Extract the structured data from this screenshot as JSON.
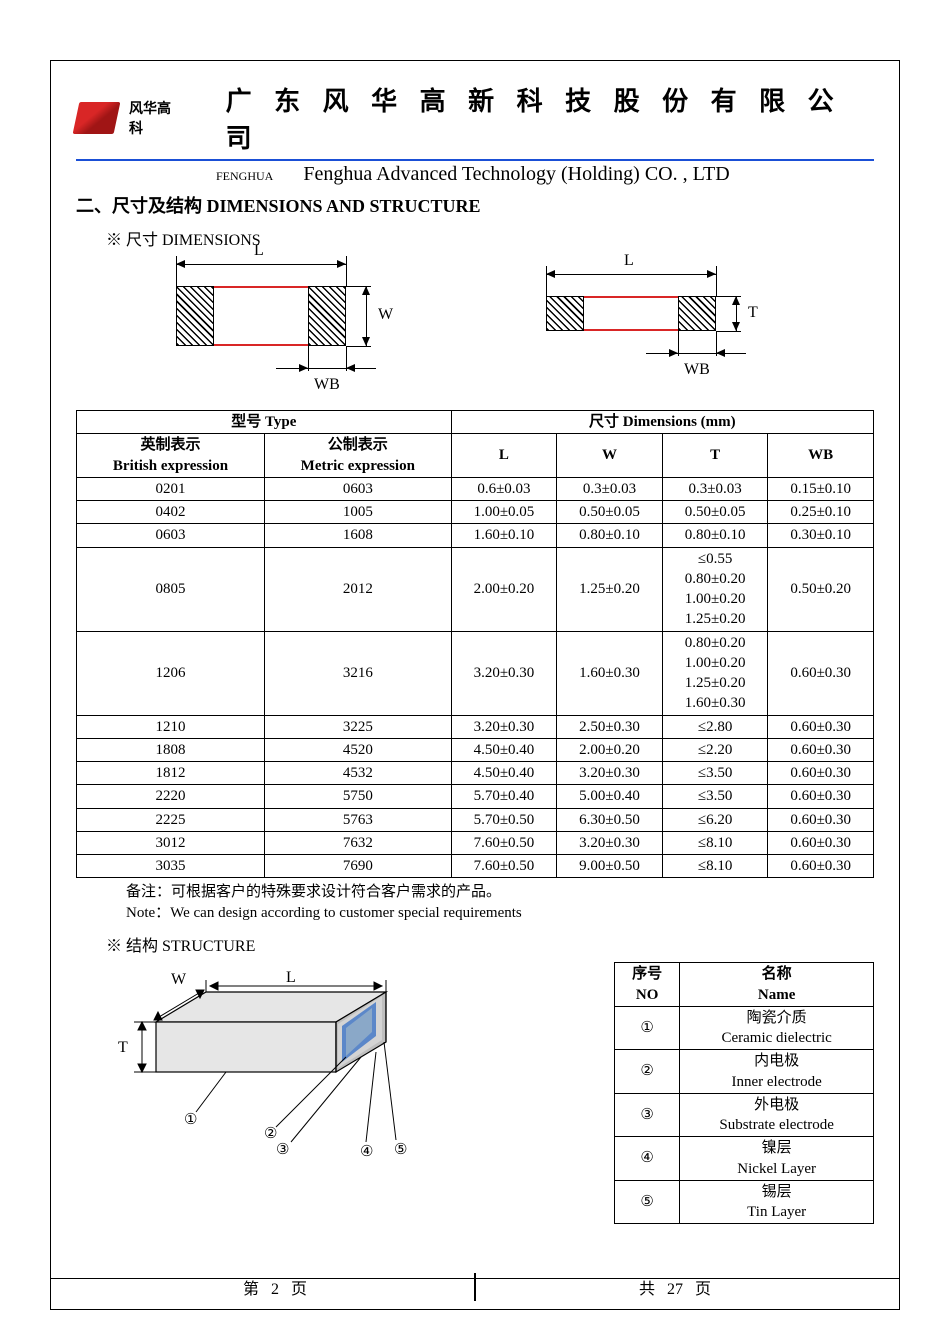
{
  "header": {
    "brand_cn": "风华高科",
    "company_cn": "广 东 风 华 高 新 科 技 股 份 有 限 公 司",
    "fenghua_en": "FENGHUA",
    "company_en": "Fenghua Advanced Technology (Holding) CO. , LTD",
    "rule_color": "#1a4fd6",
    "logo_color": "#d92626"
  },
  "section": {
    "title": "二、尺寸及结构   DIMENSIONS AND STRUCTURE",
    "dim_marker": "※ 尺寸 DIMENSIONS",
    "struct_marker": "※ 结构 STRUCTURE"
  },
  "diagram_labels": {
    "L": "L",
    "W": "W",
    "T": "T",
    "WB": "WB"
  },
  "dim_table": {
    "head_type": "型号 Type",
    "head_dim": "尺寸     Dimensions     (mm)",
    "sub_british_cn": "英制表示",
    "sub_british_en": "British expression",
    "sub_metric_cn": "公制表示",
    "sub_metric_en": "Metric expression",
    "col_L": "L",
    "col_W": "W",
    "col_T": "T",
    "col_WB": "WB",
    "rows": [
      {
        "br": "0201",
        "me": "0603",
        "L": "0.6±0.03",
        "W": "0.3±0.03",
        "T": "0.3±0.03",
        "WB": "0.15±0.10"
      },
      {
        "br": "0402",
        "me": "1005",
        "L": "1.00±0.05",
        "W": "0.50±0.05",
        "T": "0.50±0.05",
        "WB": "0.25±0.10"
      },
      {
        "br": "0603",
        "me": "1608",
        "L": "1.60±0.10",
        "W": "0.80±0.10",
        "T": "0.80±0.10",
        "WB": "0.30±0.10"
      },
      {
        "br": "0805",
        "me": "2012",
        "L": "2.00±0.20",
        "W": "1.25±0.20",
        "T": [
          "≤0.55",
          "0.80±0.20",
          "1.00±0.20",
          "1.25±0.20"
        ],
        "WB": "0.50±0.20"
      },
      {
        "br": "1206",
        "me": "3216",
        "L": "3.20±0.30",
        "W": "1.60±0.30",
        "T": [
          "0.80±0.20",
          "1.00±0.20",
          "1.25±0.20",
          "1.60±0.30"
        ],
        "WB": "0.60±0.30"
      },
      {
        "br": "1210",
        "me": "3225",
        "L": "3.20±0.30",
        "W": "2.50±0.30",
        "T": "≤2.80",
        "WB": "0.60±0.30"
      },
      {
        "br": "1808",
        "me": "4520",
        "L": "4.50±0.40",
        "W": "2.00±0.20",
        "T": "≤2.20",
        "WB": "0.60±0.30"
      },
      {
        "br": "1812",
        "me": "4532",
        "L": "4.50±0.40",
        "W": "3.20±0.30",
        "T": "≤3.50",
        "WB": "0.60±0.30"
      },
      {
        "br": "2220",
        "me": "5750",
        "L": "5.70±0.40",
        "W": "5.00±0.40",
        "T": "≤3.50",
        "WB": "0.60±0.30"
      },
      {
        "br": "2225",
        "me": "5763",
        "L": "5.70±0.50",
        "W": "6.30±0.50",
        "T": "≤6.20",
        "WB": "0.60±0.30"
      },
      {
        "br": "3012",
        "me": "7632",
        "L": "7.60±0.50",
        "W": "3.20±0.30",
        "T": "≤8.10",
        "WB": "0.60±0.30"
      },
      {
        "br": "3035",
        "me": "7690",
        "L": "7.60±0.50",
        "W": "9.00±0.50",
        "T": "≤8.10",
        "WB": "0.60±0.30"
      }
    ]
  },
  "notes": {
    "cn": "备注：可根据客户的特殊要求设计符合客户需求的产品。",
    "en": "Note：We can design according to customer special requirements"
  },
  "structure_table": {
    "head_no_cn": "序号",
    "head_no_en": "NO",
    "head_name_cn": "名称",
    "head_name_en": "Name",
    "rows": [
      {
        "no": "①",
        "cn": "陶瓷介质",
        "en": "Ceramic   dielectric"
      },
      {
        "no": "②",
        "cn": "内电极",
        "en": "Inner   electrode"
      },
      {
        "no": "③",
        "cn": "外电极",
        "en": "Substrate   electrode"
      },
      {
        "no": "④",
        "cn": "镍层",
        "en": "Nickel Layer"
      },
      {
        "no": "⑤",
        "cn": "锡层",
        "en": "Tin Layer"
      }
    ]
  },
  "structure_labels": {
    "W": "W",
    "L": "L",
    "T": "T",
    "c1": "①",
    "c2": "②",
    "c3": "③",
    "c4": "④",
    "c5": "⑤"
  },
  "structure_colors": {
    "body_fill": "#e6e6e6",
    "body_stroke": "#000000",
    "inner_electrode": "#8aa8c8",
    "substrate": "#5b87c9",
    "nickel": "#d4d4d4",
    "tin": "#bfbfbf",
    "shadow": "#808080"
  },
  "footer": {
    "left_prefix": "第",
    "page": "2",
    "left_suffix": "页",
    "right_prefix": "共",
    "total": "27",
    "right_suffix": "页"
  }
}
